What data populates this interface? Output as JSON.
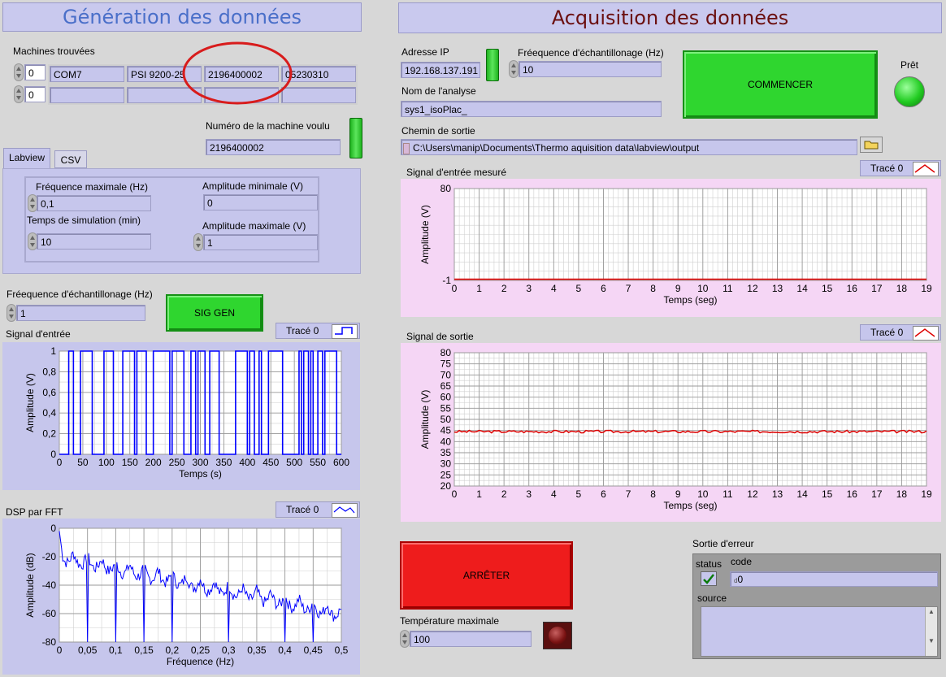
{
  "left": {
    "title": "Génération des données",
    "machines_label": "Machines trouvées",
    "machines_rows": [
      {
        "index": "0",
        "cells": [
          "COM7",
          "PSI 9200-25",
          "2196400002",
          "05230310"
        ]
      },
      {
        "index": "0",
        "cells": [
          "",
          "",
          "",
          ""
        ]
      }
    ],
    "machine_num_label": "Numéro de la machine voulu",
    "machine_num_value": "2196400002",
    "tabs": [
      "Labview",
      "CSV"
    ],
    "freq_max_label": "Fréquence maximale (Hz)",
    "freq_max_value": "0,1",
    "amp_min_label": "Amplitude minimale (V)",
    "amp_min_value": "0",
    "sim_time_label": "Temps de simulation (min)",
    "sim_time_value": "10",
    "amp_max_label": "Amplitude maximale (V)",
    "amp_max_value": "1",
    "sample_freq_label": "Fréequence d'échantillonage (Hz)",
    "sample_freq_value": "1",
    "sig_gen_label": "SIG GEN",
    "input_signal_label": "Signal d'entrée",
    "input_legend": "Tracé 0",
    "dsp_label": "DSP par FFT",
    "dsp_legend": "Tracé 0"
  },
  "right": {
    "title": "Acquisition des données",
    "ip_label": "Adresse IP",
    "ip_value": "192.168.137.191",
    "acq_freq_label": "Fréequence d'échantillonage (Hz)",
    "acq_freq_value": "10",
    "analysis_label": "Nom de l'analyse",
    "analysis_value": "sys1_isoPlac_",
    "start_label": "COMMENCER",
    "ready_label": "Prêt",
    "output_path_label": "Chemin de sortie",
    "output_path_value": "C:\\Users\\manip\\Documents\\Thermo aquisition data\\labview\\output",
    "measured_label": "Signal d'entrée mesuré",
    "measured_legend": "Tracé 0",
    "output_signal_label": "Signal de sortie",
    "output_legend": "Tracé 0",
    "stop_label": "ARRÊTER",
    "max_temp_label": "Température maximale",
    "max_temp_value": "100",
    "error_label": "Sortie d'erreur",
    "status_label": "status",
    "code_label": "code",
    "code_value": "0",
    "source_label": "source"
  },
  "colors": {
    "trace_blue": "#0000ff",
    "trace_red": "#dd0000",
    "led_green": "#22cc22"
  },
  "chart_data": [
    {
      "type": "line",
      "name": "input-signal",
      "xlabel": "Temps (s)",
      "ylabel": "Amplitude (V)",
      "xlim": [
        0,
        600
      ],
      "ylim": [
        0,
        1
      ],
      "xticks": [
        "0",
        "50",
        "100",
        "150",
        "200",
        "250",
        "300",
        "350",
        "400",
        "450",
        "500",
        "550",
        "600"
      ],
      "yticks": [
        "0",
        "0,2",
        "0,4",
        "0,6",
        "0,8",
        "1"
      ],
      "series": [
        {
          "name": "Tracé 0",
          "step_transitions": [
            20,
            30,
            45,
            70,
            95,
            115,
            135,
            160,
            165,
            185,
            200,
            235,
            240,
            265,
            280,
            290,
            295,
            310,
            320,
            340,
            375,
            400,
            405,
            415,
            425,
            430,
            445,
            475,
            510,
            515,
            520,
            530,
            535,
            540,
            550,
            560,
            565,
            590
          ],
          "start_value": 0
        }
      ]
    },
    {
      "type": "line",
      "name": "dsp-fft",
      "xlabel": "Fréquence (Hz)",
      "ylabel": "Amplitude (dB)",
      "xlim": [
        0,
        0.5
      ],
      "ylim": [
        -80,
        0
      ],
      "xticks": [
        "0",
        "0,05",
        "0,1",
        "0,15",
        "0,2",
        "0,25",
        "0,3",
        "0,35",
        "0,4",
        "0,45",
        "0,5"
      ],
      "yticks": [
        "-80",
        "-60",
        "-40",
        "-20",
        "0"
      ],
      "series": [
        {
          "name": "Tracé 0",
          "notch_freqs": [
            0.05,
            0.1,
            0.15,
            0.2,
            0.3,
            0.4,
            0.45
          ],
          "envelope_start": -15,
          "envelope_end": -55
        }
      ]
    },
    {
      "type": "line",
      "name": "measured-input",
      "xlabel": "Temps (seg)",
      "ylabel": "Amplitude (V)",
      "xlim": [
        0,
        19
      ],
      "ylim": [
        -1,
        80
      ],
      "xticks": [
        "0",
        "1",
        "2",
        "3",
        "4",
        "5",
        "6",
        "7",
        "8",
        "9",
        "10",
        "11",
        "12",
        "13",
        "14",
        "15",
        "16",
        "17",
        "18",
        "19"
      ],
      "yticks": [
        "-1",
        "80"
      ],
      "series": [
        {
          "name": "Tracé 0",
          "y_approx": 0
        }
      ]
    },
    {
      "type": "line",
      "name": "output-signal",
      "xlabel": "Temps (seg)",
      "ylabel": "Amplitude (V)",
      "xlim": [
        0,
        19
      ],
      "ylim": [
        20,
        80
      ],
      "xticks": [
        "0",
        "1",
        "2",
        "3",
        "4",
        "5",
        "6",
        "7",
        "8",
        "9",
        "10",
        "11",
        "12",
        "13",
        "14",
        "15",
        "16",
        "17",
        "18",
        "19"
      ],
      "yticks": [
        "20",
        "25",
        "30",
        "35",
        "40",
        "45",
        "50",
        "55",
        "60",
        "65",
        "70",
        "75",
        "80"
      ],
      "series": [
        {
          "name": "Tracé 0",
          "y_approx": 44.5
        }
      ]
    }
  ]
}
